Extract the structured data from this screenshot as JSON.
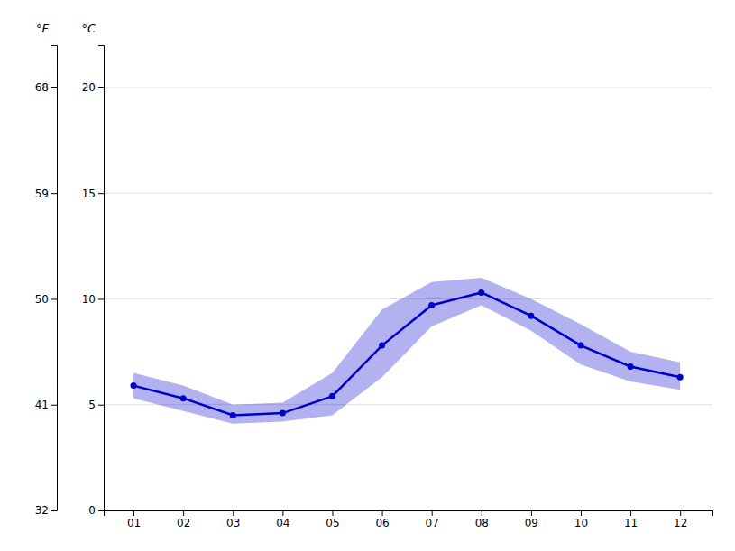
{
  "chart_data": {
    "type": "line",
    "x": [
      1,
      2,
      3,
      4,
      5,
      6,
      7,
      8,
      9,
      10,
      11,
      12
    ],
    "xlim": [
      0.4,
      12.65
    ],
    "xticks": [
      {
        "value": 1,
        "label": "01"
      },
      {
        "value": 2,
        "label": "02"
      },
      {
        "value": 3,
        "label": "03"
      },
      {
        "value": 4,
        "label": "04"
      },
      {
        "value": 5,
        "label": "05"
      },
      {
        "value": 6,
        "label": "06"
      },
      {
        "value": 7,
        "label": "07"
      },
      {
        "value": 8,
        "label": "08"
      },
      {
        "value": 9,
        "label": "09"
      },
      {
        "value": 10,
        "label": "10"
      },
      {
        "value": 11,
        "label": "11"
      },
      {
        "value": 12,
        "label": "12"
      }
    ],
    "series": [
      {
        "color": "#0000cc",
        "marker": "circle",
        "values": [
          5.9,
          5.3,
          4.5,
          4.6,
          5.4,
          7.8,
          9.7,
          10.3,
          9.2,
          7.8,
          6.8,
          6.3
        ],
        "upper": [
          6.5,
          5.9,
          5.0,
          5.1,
          6.5,
          9.5,
          10.8,
          11.0,
          10.0,
          8.8,
          7.5,
          7.0
        ],
        "lower": [
          5.3,
          4.7,
          4.1,
          4.2,
          4.5,
          6.3,
          8.7,
          9.7,
          8.5,
          6.9,
          6.1,
          5.7
        ]
      }
    ],
    "ylabel": "°C",
    "ylim": [
      0,
      22
    ],
    "yticks": [
      0,
      5,
      10,
      15,
      20
    ],
    "y2label": "°F",
    "y2lim": [
      32,
      71.6
    ],
    "y2ticks": [
      32,
      41,
      50,
      59,
      68
    ],
    "grid": true
  }
}
